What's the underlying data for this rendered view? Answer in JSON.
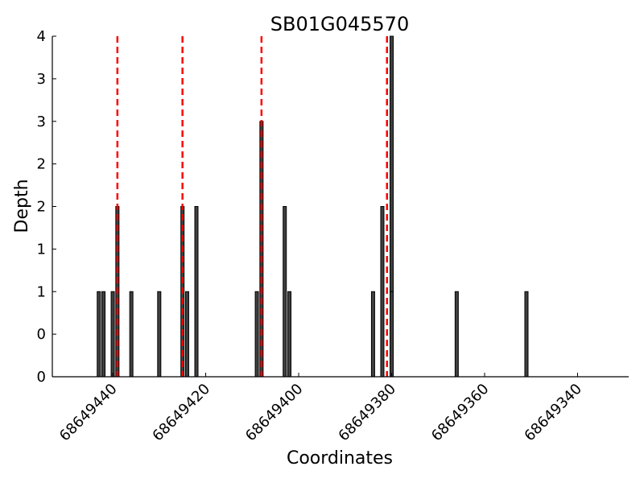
{
  "chart_data": {
    "type": "bar",
    "title": "SB01G045570",
    "xlabel": "Coordinates",
    "ylabel": "Depth",
    "xlim": [
      68649453,
      68649329
    ],
    "ylim": [
      0,
      4
    ],
    "x_axis_reversed": true,
    "x_ticks": [
      68649440,
      68649420,
      68649400,
      68649380,
      68649360,
      68649340
    ],
    "x_tick_labels": [
      "68649440",
      "68649420",
      "68649400",
      "68649380",
      "68649360",
      "68649340"
    ],
    "y_ticks": [
      0,
      0.5,
      1,
      1.5,
      2,
      2.5,
      3,
      3.5,
      4
    ],
    "y_tick_labels": [
      "0",
      "0",
      "1",
      "1",
      "2",
      "2",
      "3",
      "3",
      "4"
    ],
    "grid": false,
    "bar_color": "#404040",
    "marker_color": "#ff0000",
    "markers": [
      68649439,
      68649425,
      68649408,
      68649381
    ],
    "series": [
      {
        "x": [
          68649443,
          68649442,
          68649440,
          68649439,
          68649436,
          68649430,
          68649425,
          68649424,
          68649422,
          68649409,
          68649408,
          68649403,
          68649402,
          68649384,
          68649382,
          68649380,
          68649380,
          68649366,
          68649351
        ],
        "values": [
          1,
          1,
          1,
          2,
          1,
          1,
          2,
          1,
          2,
          1,
          3,
          2,
          1,
          1,
          2,
          4,
          1,
          1,
          1
        ]
      }
    ]
  }
}
